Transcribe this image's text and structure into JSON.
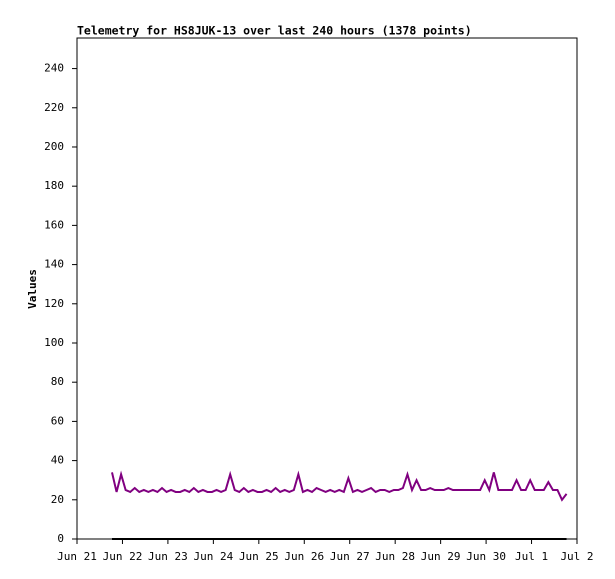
{
  "chart_data": {
    "type": "line",
    "title": "Telemetry for HS8JUK-13 over last 240 hours (1378 points)",
    "y_label": "Values",
    "xlim": [
      0,
      11
    ],
    "xticks": [
      {
        "value": 0,
        "label": "Jun 21"
      },
      {
        "value": 1,
        "label": "Jun 22"
      },
      {
        "value": 2,
        "label": "Jun 23"
      },
      {
        "value": 3,
        "label": "Jun 24"
      },
      {
        "value": 4,
        "label": "Jun 25"
      },
      {
        "value": 5,
        "label": "Jun 26"
      },
      {
        "value": 6,
        "label": "Jun 27"
      },
      {
        "value": 7,
        "label": "Jun 28"
      },
      {
        "value": 8,
        "label": "Jun 29"
      },
      {
        "value": 9,
        "label": "Jun 30"
      },
      {
        "value": 10,
        "label": "Jul 1"
      },
      {
        "value": 11,
        "label": "Jul 2"
      }
    ],
    "ylim": [
      0,
      255.6
    ],
    "yticks": [
      0,
      20,
      40,
      60,
      80,
      100,
      120,
      140,
      160,
      180,
      200,
      220,
      240
    ],
    "series": [
      {
        "color": "#800080",
        "x": [
          0.77,
          0.87,
          0.97,
          1.07,
          1.17,
          1.27,
          1.37,
          1.47,
          1.57,
          1.67,
          1.77,
          1.87,
          1.97,
          2.07,
          2.17,
          2.27,
          2.37,
          2.47,
          2.57,
          2.67,
          2.77,
          2.87,
          2.97,
          3.07,
          3.17,
          3.27,
          3.37,
          3.47,
          3.57,
          3.67,
          3.77,
          3.87,
          3.97,
          4.07,
          4.17,
          4.27,
          4.37,
          4.47,
          4.57,
          4.67,
          4.77,
          4.87,
          4.97,
          5.07,
          5.17,
          5.27,
          5.37,
          5.47,
          5.57,
          5.67,
          5.77,
          5.87,
          5.97,
          6.07,
          6.17,
          6.27,
          6.37,
          6.47,
          6.57,
          6.67,
          6.77,
          6.87,
          6.97,
          7.07,
          7.17,
          7.27,
          7.37,
          7.47,
          7.57,
          7.67,
          7.77,
          7.87,
          7.97,
          8.07,
          8.17,
          8.27,
          8.37,
          8.47,
          8.57,
          8.67,
          8.77,
          8.87,
          8.97,
          9.07,
          9.17,
          9.27,
          9.37,
          9.47,
          9.57,
          9.67,
          9.77,
          9.87,
          9.97,
          10.07,
          10.17,
          10.27,
          10.37,
          10.47,
          10.57,
          10.67,
          10.77
        ],
        "values": [
          34,
          24,
          33,
          25,
          24,
          26,
          24,
          25,
          24,
          25,
          24,
          26,
          24,
          25,
          24,
          24,
          25,
          24,
          26,
          24,
          25,
          24,
          24,
          25,
          24,
          25,
          33,
          25,
          24,
          26,
          24,
          25,
          24,
          24,
          25,
          24,
          26,
          24,
          25,
          24,
          25,
          33,
          24,
          25,
          24,
          26,
          25,
          24,
          25,
          24,
          25,
          24,
          31,
          24,
          25,
          24,
          25,
          26,
          24,
          25,
          25,
          24,
          25,
          25,
          26,
          33,
          25,
          30,
          25,
          25,
          26,
          25,
          25,
          25,
          26,
          25,
          25,
          25,
          25,
          25,
          25,
          25,
          30,
          25,
          34,
          25,
          25,
          25,
          25,
          30,
          25,
          25,
          30,
          25,
          25,
          25,
          29,
          25,
          25,
          20,
          23
        ]
      },
      {
        "color": "#000000",
        "x": [
          0.77,
          10.77
        ],
        "values": [
          0,
          0
        ]
      }
    ]
  }
}
